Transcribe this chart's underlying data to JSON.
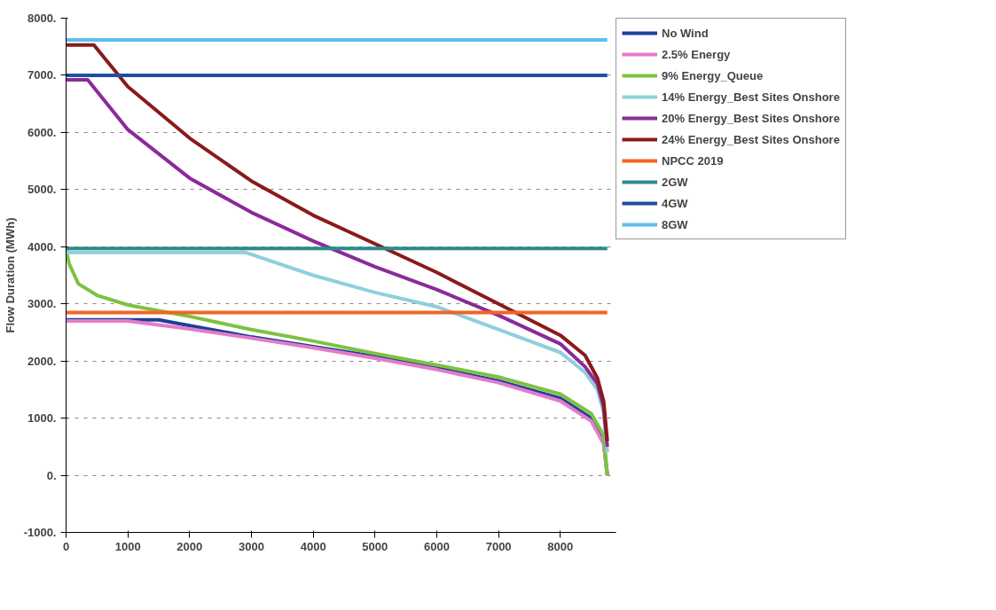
{
  "chart_data": {
    "type": "line",
    "ylabel": "Flow Duration (MWh)",
    "xlim": [
      0,
      8900
    ],
    "ylim": [
      -1000,
      8000
    ],
    "xticks": [
      0,
      1000,
      2000,
      3000,
      4000,
      5000,
      6000,
      7000,
      8000
    ],
    "yticks": [
      {
        "value": -1000,
        "label": "-1000."
      },
      {
        "value": 0,
        "label": "0."
      },
      {
        "value": 1000,
        "label": "1000."
      },
      {
        "value": 2000,
        "label": "2000."
      },
      {
        "value": 3000,
        "label": "3000."
      },
      {
        "value": 4000,
        "label": "4000."
      },
      {
        "value": 5000,
        "label": "5000."
      },
      {
        "value": 6000,
        "label": "6000."
      },
      {
        "value": 7000,
        "label": "7000."
      },
      {
        "value": 8000,
        "label": "8000."
      }
    ],
    "grid": "y",
    "legend": "right",
    "marker": "none",
    "line_style": "solid",
    "series": [
      {
        "name": "No Wind",
        "color": "#1f3f99",
        "x": [
          0,
          1500,
          2000,
          3000,
          4000,
          5000,
          6000,
          7000,
          8000,
          8500,
          8700,
          8760
        ],
        "values": [
          2720,
          2720,
          2620,
          2420,
          2250,
          2080,
          1880,
          1650,
          1350,
          1000,
          600,
          0
        ]
      },
      {
        "name": "2.5% Energy",
        "color": "#e37cc8",
        "x": [
          0,
          1000,
          2000,
          3000,
          4000,
          5000,
          6000,
          7000,
          8000,
          8500,
          8700,
          8760
        ],
        "values": [
          2700,
          2700,
          2560,
          2400,
          2230,
          2050,
          1850,
          1620,
          1300,
          950,
          550,
          0
        ]
      },
      {
        "name": "9% Energy_Queue",
        "color": "#7dc242",
        "x": [
          0,
          50,
          200,
          500,
          1000,
          2000,
          3000,
          4000,
          5000,
          6000,
          7000,
          8000,
          8500,
          8700,
          8760
        ],
        "values": [
          3950,
          3700,
          3350,
          3150,
          2980,
          2780,
          2550,
          2350,
          2130,
          1930,
          1720,
          1420,
          1080,
          700,
          0
        ]
      },
      {
        "name": "14% Energy_Best Sites Onshore",
        "color": "#8fcfdc",
        "x": [
          0,
          2900,
          4000,
          5000,
          6000,
          7000,
          8000,
          8400,
          8600,
          8700,
          8760
        ],
        "values": [
          3900,
          3900,
          3500,
          3200,
          2950,
          2550,
          2150,
          1800,
          1500,
          1100,
          400
        ]
      },
      {
        "name": "20% Energy_Best Sites Onshore",
        "color": "#8b2a9a",
        "x": [
          0,
          350,
          1000,
          2000,
          3000,
          4000,
          5000,
          6000,
          7000,
          8000,
          8400,
          8600,
          8700,
          8760
        ],
        "values": [
          6920,
          6920,
          6050,
          5200,
          4600,
          4100,
          3650,
          3250,
          2800,
          2300,
          1900,
          1600,
          1200,
          500
        ]
      },
      {
        "name": "24% Energy_Best Sites Onshore",
        "color": "#8b1a1a",
        "x": [
          0,
          450,
          1000,
          2000,
          3000,
          4000,
          5000,
          6000,
          7000,
          8000,
          8400,
          8600,
          8700,
          8760
        ],
        "values": [
          7530,
          7530,
          6800,
          5900,
          5150,
          4550,
          4050,
          3550,
          3000,
          2450,
          2100,
          1700,
          1300,
          600
        ]
      },
      {
        "name": "NPCC 2019",
        "color": "#f26522",
        "x": [
          0,
          8760
        ],
        "values": [
          2850,
          2850
        ]
      },
      {
        "name": "2GW",
        "color": "#2e8b8b",
        "x": [
          0,
          8760
        ],
        "values": [
          3970,
          3970
        ]
      },
      {
        "name": "4GW",
        "color": "#1f4fa0",
        "x": [
          0,
          8760
        ],
        "values": [
          7000,
          7000
        ]
      },
      {
        "name": "8GW",
        "color": "#5bc0eb",
        "x": [
          0,
          8760
        ],
        "values": [
          7620,
          7620
        ]
      }
    ]
  }
}
